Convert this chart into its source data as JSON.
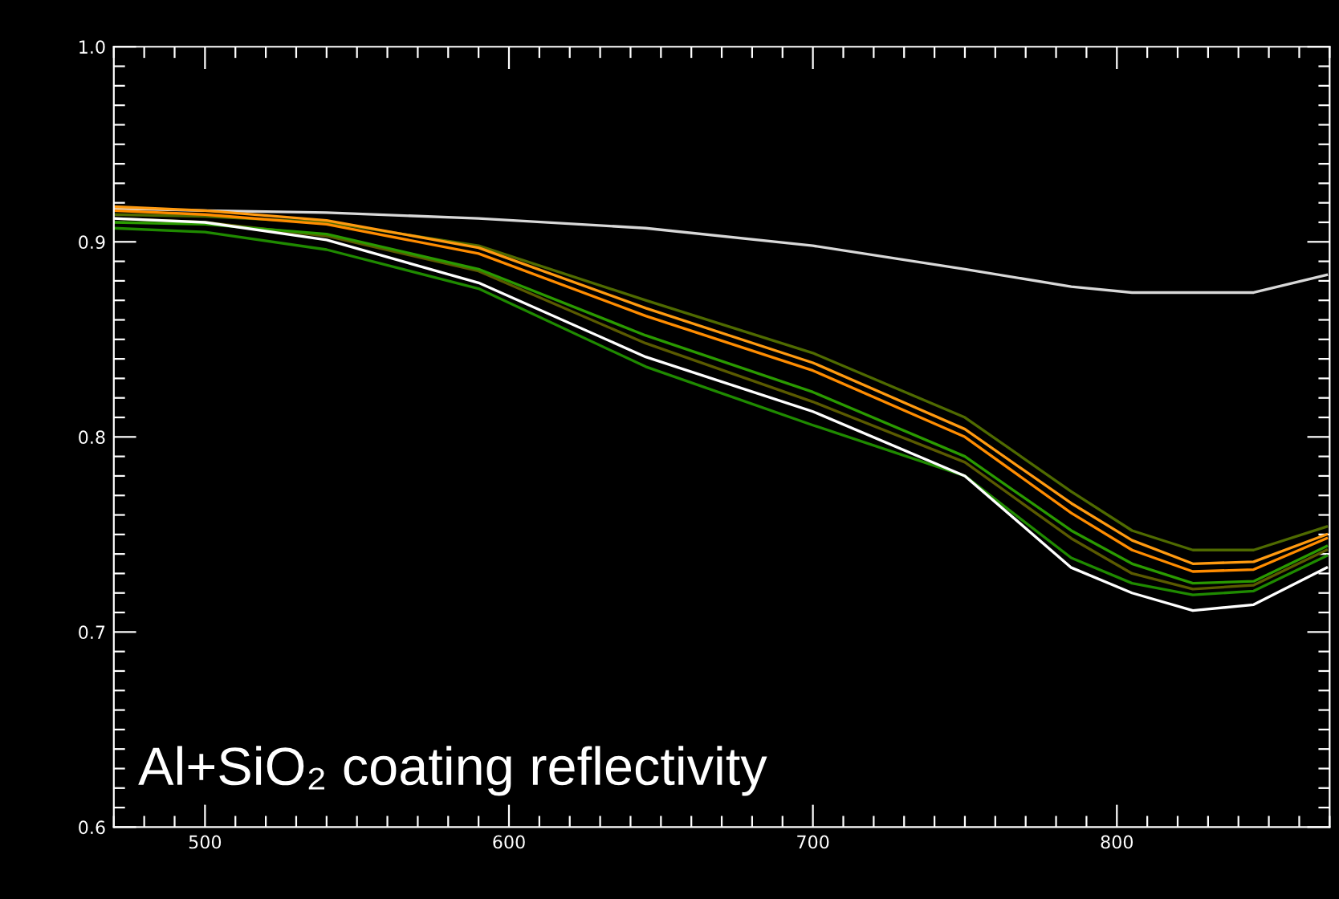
{
  "chart_data": {
    "type": "line",
    "annotations": [
      "Al+SiO₂ coating reflectivity"
    ],
    "x": [
      470,
      500,
      540,
      590,
      645,
      700,
      750,
      785,
      805,
      825,
      845,
      869
    ],
    "xlim": [
      470,
      870
    ],
    "xticks": [
      500,
      600,
      700,
      800
    ],
    "ylim": [
      0.6,
      1.0
    ],
    "yticks": [
      0.6,
      0.7,
      0.8,
      0.9,
      {
        "value": 1.0,
        "label": "1.0"
      }
    ],
    "grid": false,
    "legend": false,
    "marker": "none",
    "line_style": "solid",
    "series": [
      {
        "color": "#d8d8d8",
        "values": [
          0.917,
          0.916,
          0.915,
          0.912,
          0.907,
          0.898,
          0.886,
          0.877,
          0.874,
          0.874,
          0.874,
          0.883
        ]
      },
      {
        "color": "#4f6a00",
        "values": [
          0.914,
          0.913,
          0.91,
          0.898,
          0.87,
          0.843,
          0.81,
          0.772,
          0.752,
          0.742,
          0.742,
          0.754
        ]
      },
      {
        "color": "#5a5a00",
        "values": [
          0.912,
          0.91,
          0.903,
          0.885,
          0.848,
          0.818,
          0.787,
          0.748,
          0.73,
          0.722,
          0.724,
          0.742
        ]
      },
      {
        "color": "#2a9a00",
        "values": [
          0.91,
          0.909,
          0.904,
          0.886,
          0.852,
          0.823,
          0.79,
          0.752,
          0.735,
          0.725,
          0.726,
          0.744
        ]
      },
      {
        "color": "#1f8a00",
        "values": [
          0.907,
          0.905,
          0.896,
          0.876,
          0.836,
          0.806,
          0.78,
          0.738,
          0.725,
          0.719,
          0.721,
          0.739
        ]
      },
      {
        "color": "#ffffff",
        "values": [
          0.912,
          0.91,
          0.901,
          0.879,
          0.841,
          0.813,
          0.78,
          0.733,
          0.72,
          0.711,
          0.714,
          0.733
        ]
      },
      {
        "color": "#ff8c00",
        "values": [
          0.916,
          0.914,
          0.909,
          0.894,
          0.862,
          0.834,
          0.8,
          0.761,
          0.742,
          0.731,
          0.732,
          0.748
        ]
      },
      {
        "color": "#ff9a10",
        "values": [
          0.918,
          0.916,
          0.911,
          0.897,
          0.866,
          0.838,
          0.804,
          0.766,
          0.747,
          0.735,
          0.736,
          0.75
        ]
      }
    ]
  }
}
